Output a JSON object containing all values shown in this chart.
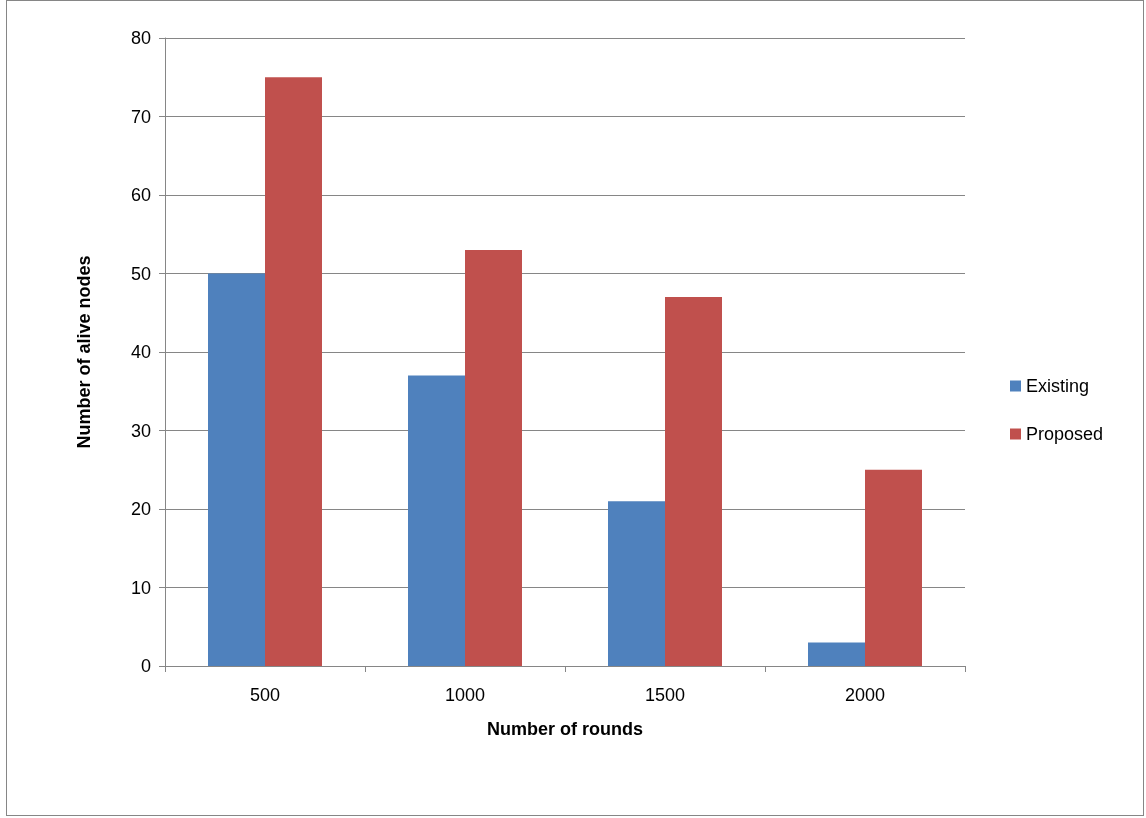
{
  "chart_data": {
    "type": "bar",
    "xlabel": "Number of rounds",
    "ylabel": "Number of alive nodes",
    "categories": [
      "500",
      "1000",
      "1500",
      "2000"
    ],
    "series": [
      {
        "name": "Existing",
        "color": "#4f81bd",
        "values": [
          50,
          37,
          21,
          3
        ]
      },
      {
        "name": "Proposed",
        "color": "#c0504d",
        "values": [
          75,
          53,
          47,
          25
        ]
      }
    ],
    "ylim": [
      0,
      80
    ],
    "yticks": [
      0,
      10,
      20,
      30,
      40,
      50,
      60,
      70,
      80
    ],
    "grid": "y",
    "legend": "right"
  }
}
